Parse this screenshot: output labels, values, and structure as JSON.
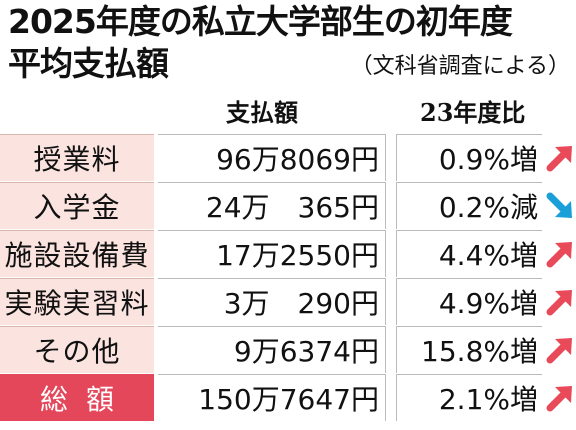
{
  "title": "2025年度の私立大学部生の初年度",
  "title_line2": "平均支払額",
  "subtitle": "（文科省調査による）",
  "columns": {
    "amount": "支払額",
    "ratio": "23年度比"
  },
  "rows": [
    {
      "label": "授業料",
      "amount": "96万8069円",
      "ratio": "0.9%増",
      "trend": "up"
    },
    {
      "label": "入学金",
      "amount": "24万　365円",
      "ratio": "0.2%減",
      "trend": "down"
    },
    {
      "label": "施設設備費",
      "amount": "17万2550円",
      "ratio": "4.4%増",
      "trend": "up"
    },
    {
      "label": "実験実習料",
      "amount": "3万　290円",
      "ratio": "4.9%増",
      "trend": "up"
    },
    {
      "label": "その他",
      "amount": "9万6374円",
      "ratio": "15.8%増",
      "trend": "up"
    },
    {
      "label": "総額",
      "amount": "150万7647円",
      "ratio": "2.1%増",
      "trend": "up"
    }
  ],
  "colors": {
    "label_bg": "#fbe3e0",
    "total_bg": "#e4475a",
    "up_arrow": "#e84a5a",
    "down_arrow": "#1a9fd8"
  },
  "icons": {
    "up": "arrow-up-right-icon",
    "down": "arrow-down-right-icon"
  }
}
